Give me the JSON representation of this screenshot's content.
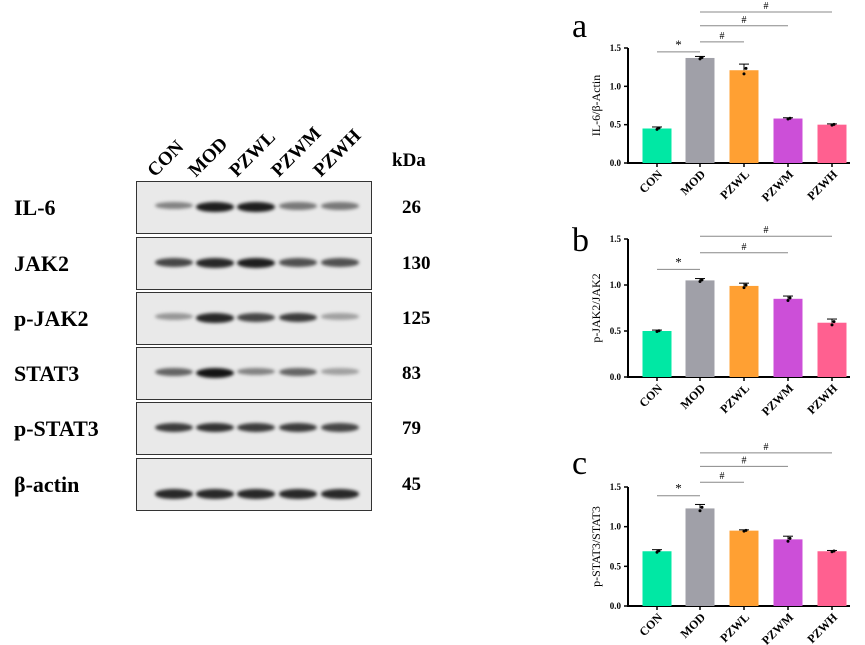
{
  "blot": {
    "lanes": [
      "CON",
      "MOD",
      "PZWL",
      "PZWM",
      "PZWH"
    ],
    "kda_label": "kDa",
    "rows": [
      {
        "protein": "IL-6",
        "kda": "26",
        "intensity": [
          0.45,
          0.95,
          0.95,
          0.5,
          0.5
        ]
      },
      {
        "protein": "JAK2",
        "kda": "130",
        "intensity": [
          0.75,
          0.9,
          0.95,
          0.7,
          0.7
        ]
      },
      {
        "protein": "p-JAK2",
        "kda": "125",
        "intensity": [
          0.35,
          0.9,
          0.75,
          0.8,
          0.3
        ]
      },
      {
        "protein": "STAT3",
        "kda": "83",
        "intensity": [
          0.6,
          1.0,
          0.45,
          0.6,
          0.3
        ]
      },
      {
        "protein": "p-STAT3",
        "kda": "79",
        "intensity": [
          0.8,
          0.85,
          0.8,
          0.8,
          0.75
        ]
      },
      {
        "protein": "β-actin",
        "kda": "45",
        "intensity": [
          0.9,
          0.9,
          0.9,
          0.9,
          0.9
        ]
      }
    ]
  },
  "colors": [
    "#00e8a4",
    "#a0a0a8",
    "#ffa033",
    "#cc4fd8",
    "#ff6090"
  ],
  "chart_data": [
    {
      "type": "bar",
      "panel": "a",
      "ylabel": "IL-6/β-Actin",
      "categories": [
        "CON",
        "MOD",
        "PZWL",
        "PZWM",
        "PZWH"
      ],
      "values": [
        0.45,
        1.37,
        1.21,
        0.58,
        0.5
      ],
      "errors": [
        0.02,
        0.02,
        0.08,
        0.01,
        0.01
      ],
      "ylim": [
        0,
        1.5
      ],
      "yticks": [
        "0.0",
        "0.5",
        "1.0",
        "1.5"
      ],
      "significance": [
        {
          "from": 0,
          "to": 1,
          "mark": "*",
          "y": 1.45
        },
        {
          "from": 1,
          "to": 2,
          "mark": "#",
          "y": 1.58
        },
        {
          "from": 1,
          "to": 3,
          "mark": "#",
          "y": 1.79
        },
        {
          "from": 1,
          "to": 4,
          "mark": "#",
          "y": 1.97
        }
      ]
    },
    {
      "type": "bar",
      "panel": "b",
      "ylabel": "p-JAK2/JAK2",
      "categories": [
        "CON",
        "MOD",
        "PZWL",
        "PZWM",
        "PZWH"
      ],
      "values": [
        0.5,
        1.05,
        0.99,
        0.85,
        0.59
      ],
      "errors": [
        0.01,
        0.02,
        0.03,
        0.03,
        0.04
      ],
      "ylim": [
        0,
        1.5
      ],
      "yticks": [
        "0.0",
        "0.5",
        "1.0",
        "1.5"
      ],
      "significance": [
        {
          "from": 0,
          "to": 1,
          "mark": "*",
          "y": 1.17
        },
        {
          "from": 1,
          "to": 3,
          "mark": "#",
          "y": 1.35
        },
        {
          "from": 1,
          "to": 4,
          "mark": "#",
          "y": 1.53
        }
      ]
    },
    {
      "type": "bar",
      "panel": "c",
      "ylabel": "p-STAT3/STAT3",
      "categories": [
        "CON",
        "MOD",
        "PZWL",
        "PZWM",
        "PZWH"
      ],
      "values": [
        0.69,
        1.23,
        0.95,
        0.84,
        0.69
      ],
      "errors": [
        0.02,
        0.05,
        0.01,
        0.04,
        0.01
      ],
      "ylim": [
        0,
        1.5
      ],
      "yticks": [
        "0.0",
        "0.5",
        "1.0",
        "1.5"
      ],
      "significance": [
        {
          "from": 0,
          "to": 1,
          "mark": "*",
          "y": 1.39
        },
        {
          "from": 1,
          "to": 2,
          "mark": "#",
          "y": 1.56
        },
        {
          "from": 1,
          "to": 3,
          "mark": "#",
          "y": 1.76
        },
        {
          "from": 1,
          "to": 4,
          "mark": "#",
          "y": 1.93
        }
      ]
    }
  ]
}
